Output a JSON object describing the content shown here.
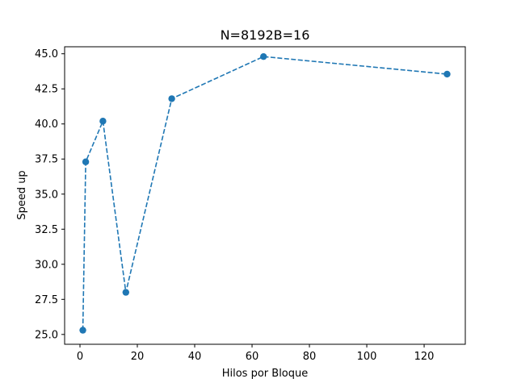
{
  "chart_data": {
    "type": "line",
    "title": "N=8192B=16",
    "xlabel": "Hilos por Bloque",
    "ylabel": "Speed up",
    "xlim": [
      -5.35,
      134.35
    ],
    "ylim": [
      24.3,
      45.5
    ],
    "xticks": [
      0,
      20,
      40,
      60,
      80,
      100,
      120
    ],
    "yticks": [
      25.0,
      27.5,
      30.0,
      32.5,
      35.0,
      37.5,
      40.0,
      42.5,
      45.0
    ],
    "ytick_labels": [
      "25.0",
      "27.5",
      "30.0",
      "32.5",
      "35.0",
      "37.5",
      "40.0",
      "42.5",
      "45.0"
    ],
    "grid": false,
    "series": [
      {
        "x": [
          1,
          2,
          8,
          16,
          32,
          64,
          128
        ],
        "y": [
          25.3,
          37.3,
          40.2,
          28.0,
          41.8,
          44.8,
          43.55
        ],
        "color": "#1f77b4",
        "linestyle": "dashed",
        "marker": "circle"
      }
    ]
  }
}
